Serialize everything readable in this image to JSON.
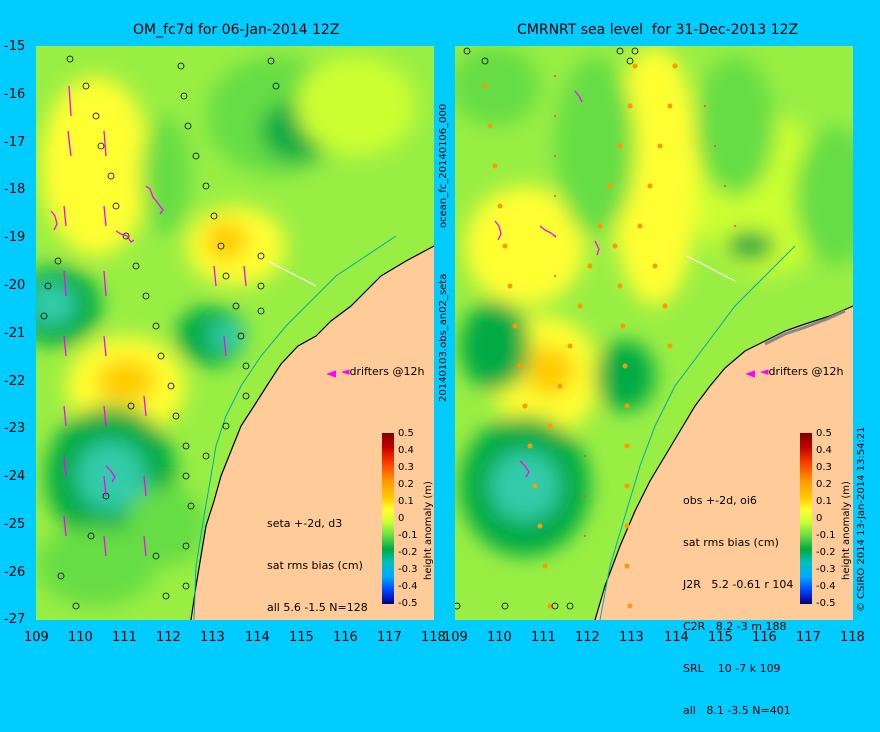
{
  "left_panel": {
    "title": "OM_fc7d for 06-Jan-2014 12Z",
    "stats": [
      "seta +-2d, d3",
      "sat rms bias (cm)",
      "all 5.6 -1.5 N=128"
    ],
    "drifter_legend": "drifters @12h"
  },
  "right_panel": {
    "title": "CMRNRT sea level  for 31-Dec-2013 12Z",
    "stats": [
      "obs +-2d, oi6",
      "sat rms bias (cm)",
      "J2R   5.2 -0.61 r 104",
      "C2R   8.2 -3 m 188",
      "SRL    10 -7 k 109",
      "all   8.1 -3.5 N=401"
    ],
    "drifter_legend": "drifters @12h"
  },
  "axes": {
    "lat_labels": [
      "-15",
      "-16",
      "-17",
      "-18",
      "-19",
      "-20",
      "-21",
      "-22",
      "-23",
      "-24",
      "-25",
      "-26",
      "-27"
    ],
    "lon_labels": [
      "109",
      "110",
      "111",
      "112",
      "113",
      "114",
      "115",
      "116",
      "117",
      "118"
    ]
  },
  "colorbar": {
    "title": "height anomaly (m)",
    "labels": [
      "0.5",
      "0.4",
      "0.3",
      "0.2",
      "0.1",
      "0",
      "-0.1",
      "-0.2",
      "-0.3",
      "-0.4",
      "-0.5"
    ],
    "colors": [
      "#800000",
      "#c00000",
      "#ff4000",
      "#ff9900",
      "#ffcc00",
      "#ffff33",
      "#ccff33",
      "#66dd44",
      "#00aa44",
      "#00c0c0",
      "#00aaff",
      "#0044ff",
      "#000080"
    ]
  },
  "side_labels": {
    "middle": "20140103.obs_an02_seta",
    "middle_top": "ocean_fc_20140106_000",
    "right": "© CSIRO 2014  13-Jan-2014 13:54:21"
  },
  "colors": {
    "background": "#00ccff",
    "land": "#ffcc99",
    "drifter": "#ff00ff",
    "coast_line": "#000000",
    "shelf_line": "#00aaaa"
  }
}
